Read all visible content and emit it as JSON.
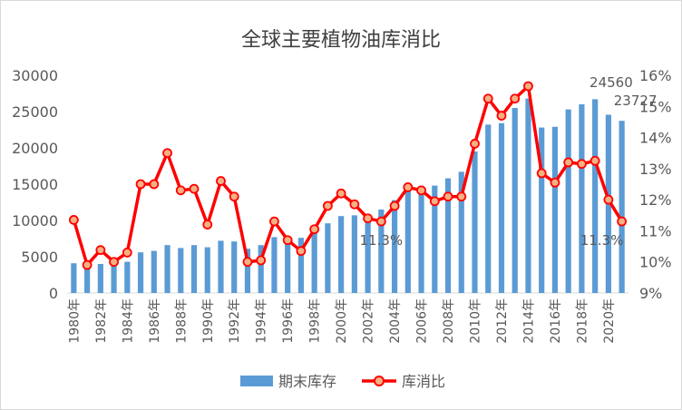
{
  "chart_data": {
    "type": "bar+line",
    "title": "全球主要植物油库消比",
    "categories": [
      "1980年",
      "1981年",
      "1982年",
      "1983年",
      "1984年",
      "1985年",
      "1986年",
      "1987年",
      "1988年",
      "1989年",
      "1990年",
      "1991年",
      "1992年",
      "1993年",
      "1994年",
      "1995年",
      "1996年",
      "1997年",
      "1998年",
      "1999年",
      "2000年",
      "2001年",
      "2002年",
      "2003年",
      "2004年",
      "2005年",
      "2006年",
      "2007年",
      "2008年",
      "2009年",
      "2010年",
      "2011年",
      "2012年",
      "2013年",
      "2014年",
      "2015年",
      "2016年",
      "2017年",
      "2018年",
      "2019年",
      "2020年",
      "2021年"
    ],
    "x_tick_labels": [
      "1980年",
      "1982年",
      "1984年",
      "1986年",
      "1988年",
      "1990年",
      "1992年",
      "1994年",
      "1996年",
      "1998年",
      "2000年",
      "2002年",
      "2004年",
      "2006年",
      "2008年",
      "2010年",
      "2012年",
      "2014年",
      "2016年",
      "2018年",
      "2020年"
    ],
    "series": [
      {
        "name": "期末库存",
        "type": "bar",
        "axis": "left",
        "color": "#5B9BD5",
        "values": [
          4100,
          4000,
          4000,
          4000,
          4300,
          5600,
          5800,
          6600,
          6200,
          6600,
          6300,
          7200,
          7100,
          6100,
          6600,
          7700,
          7400,
          7600,
          9000,
          9600,
          10600,
          10700,
          10200,
          11500,
          12800,
          14000,
          14400,
          14800,
          15800,
          16700,
          19500,
          23200,
          23400,
          25500,
          26800,
          22800,
          22900,
          25300,
          26000,
          26700,
          24560,
          23727
        ]
      },
      {
        "name": "库消比",
        "type": "line",
        "axis": "right",
        "color": "#FF0000",
        "marker_fill": "#F4B183",
        "values": [
          11.35,
          9.9,
          10.38,
          10.0,
          10.3,
          12.5,
          12.5,
          13.5,
          12.3,
          12.35,
          11.2,
          12.6,
          12.1,
          10.0,
          10.05,
          11.3,
          10.7,
          10.35,
          11.05,
          11.8,
          12.2,
          11.85,
          11.4,
          11.3,
          11.8,
          12.4,
          12.3,
          11.95,
          12.1,
          12.1,
          13.8,
          15.25,
          14.7,
          15.25,
          15.65,
          12.85,
          12.55,
          13.2,
          13.15,
          13.25,
          12.0,
          11.3
        ]
      }
    ],
    "y_left": {
      "min": 0,
      "max": 30000,
      "ticks": [
        0,
        5000,
        10000,
        15000,
        20000,
        25000,
        30000
      ]
    },
    "y_right": {
      "min": 9,
      "max": 16,
      "ticks": [
        "9%",
        "10%",
        "11%",
        "12%",
        "13%",
        "14%",
        "15%",
        "16%"
      ]
    },
    "data_labels": [
      {
        "series": "期末库存",
        "category": "2020年",
        "text": "24560"
      },
      {
        "series": "期末库存",
        "category": "2021年",
        "text": "23727"
      },
      {
        "series": "库消比",
        "category": "2003年",
        "text": "11.3%"
      },
      {
        "series": "库消比",
        "category": "2021年",
        "text": "11.3%"
      }
    ],
    "legend": {
      "position": "bottom",
      "items": [
        "期末库存",
        "库消比"
      ]
    },
    "grid": false
  }
}
